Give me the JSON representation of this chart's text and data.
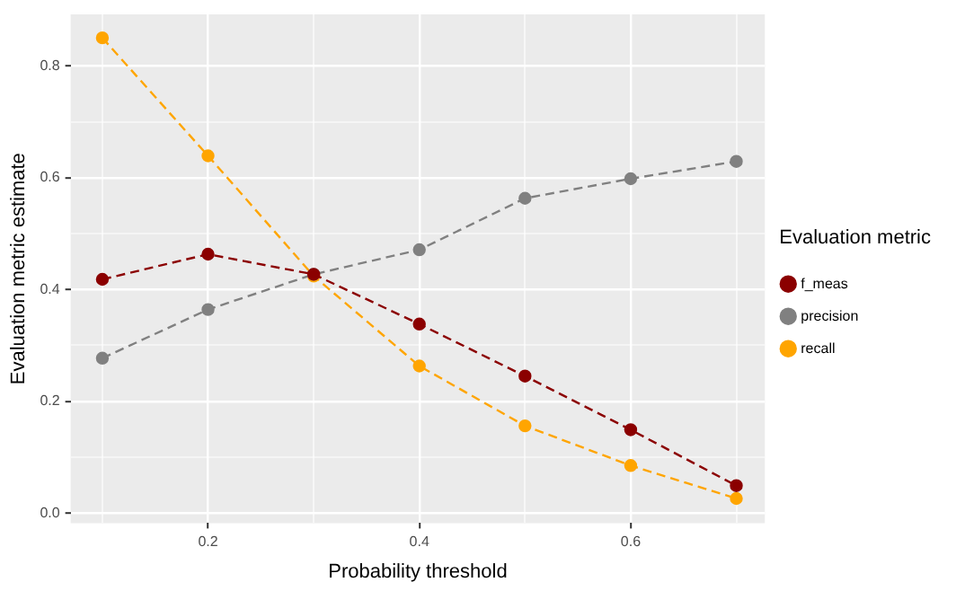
{
  "chart_data": {
    "type": "line",
    "xlabel": "Probability threshold",
    "ylabel": "Evaluation metric estimate",
    "legend_title": "Evaluation metric",
    "x": [
      0.1,
      0.2,
      0.3,
      0.4,
      0.5,
      0.6,
      0.7
    ],
    "series": [
      {
        "name": "f_meas",
        "color": "#8b0000",
        "values": [
          0.418,
          0.463,
          0.427,
          0.338,
          0.245,
          0.149,
          0.049
        ]
      },
      {
        "name": "precision",
        "color": "#808080",
        "values": [
          0.277,
          0.364,
          0.427,
          0.471,
          0.563,
          0.598,
          0.629
        ]
      },
      {
        "name": "recall",
        "color": "#ffa500",
        "values": [
          0.85,
          0.639,
          0.424,
          0.263,
          0.156,
          0.085,
          0.026
        ]
      }
    ],
    "xlim": [
      0.07,
      0.727
    ],
    "ylim": [
      -0.018,
      0.892
    ],
    "xticks": [
      {
        "value": 0.1,
        "label": null
      },
      0.2,
      {
        "value": 0.3,
        "label": null
      },
      0.4,
      {
        "value": 0.5,
        "label": null
      },
      0.6,
      {
        "value": 0.7,
        "label": null
      }
    ],
    "yticks": [
      {
        "value": 0,
        "label": "0.0"
      },
      {
        "value": 0.1,
        "label": null
      },
      0.2,
      {
        "value": 0.3,
        "label": null
      },
      0.4,
      {
        "value": 0.5,
        "label": null
      },
      0.6,
      {
        "value": 0.7,
        "label": null
      },
      0.8
    ],
    "grid": true,
    "legend": "right",
    "marker": "circle",
    "line_style": "dashed"
  }
}
